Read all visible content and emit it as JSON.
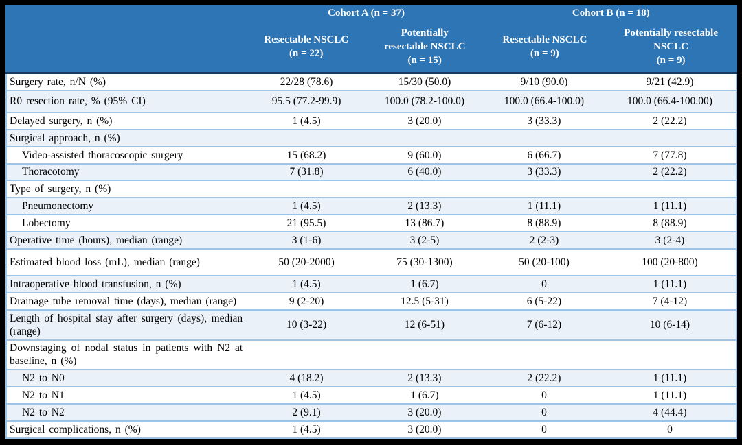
{
  "table": {
    "cohorts": [
      {
        "label": "Cohort A (n = 37)"
      },
      {
        "label": "Cohort B (n = 18)"
      }
    ],
    "columns": [
      {
        "label": "Resectable NSCLC\n(n = 22)"
      },
      {
        "label": "Potentially\nresectable NSCLC\n(n = 15)"
      },
      {
        "label": "Resectable NSCLC\n(n = 9)"
      },
      {
        "label": "Potentially resectable\nNSCLC\n(n = 9)"
      }
    ],
    "rows": [
      {
        "label": "Surgery rate, n/N (%)",
        "indent": false,
        "values": [
          "22/28 (78.6)",
          "15/30 (50.0)",
          "9/10 (90.0)",
          "9/21 (42.9)"
        ]
      },
      {
        "label": "R0 resection rate, % (95% CI)",
        "indent": false,
        "values": [
          "95.5 (77.2-99.9)",
          "100.0 (78.2-100.0)",
          "100.0 (66.4-100.0)",
          "100.0 (66.4-100.00)"
        ]
      },
      {
        "label": "Delayed surgery, n (%)",
        "indent": false,
        "values": [
          "1 (4.5)",
          "3 (20.0)",
          "3 (33.3)",
          "2 (22.2)"
        ]
      },
      {
        "label": "Surgical approach, n (%)",
        "indent": false,
        "values": [
          "",
          "",
          "",
          ""
        ]
      },
      {
        "label": "Video-assisted thoracoscopic surgery",
        "indent": true,
        "values": [
          "15 (68.2)",
          "9 (60.0)",
          "6 (66.7)",
          "7 (77.8)"
        ]
      },
      {
        "label": "Thoracotomy",
        "indent": true,
        "values": [
          "7 (31.8)",
          "6 (40.0)",
          "3 (33.3)",
          "2 (22.2)"
        ]
      },
      {
        "label": "Type of surgery, n (%)",
        "indent": false,
        "values": [
          "",
          "",
          "",
          ""
        ]
      },
      {
        "label": "Pneumonectomy",
        "indent": true,
        "values": [
          "1 (4.5)",
          "2 (13.3)",
          "1 (11.1)",
          "1 (11.1)"
        ]
      },
      {
        "label": "Lobectomy",
        "indent": true,
        "values": [
          "21 (95.5)",
          "13 (86.7)",
          "8 (88.9)",
          "8 (88.9)"
        ]
      },
      {
        "label": "Operative time (hours), median (range)",
        "indent": false,
        "values": [
          "3 (1-6)",
          "3 (2-5)",
          "2 (2-3)",
          "3 (2-4)"
        ]
      },
      {
        "label": "Estimated blood loss (mL), median (range)",
        "indent": false,
        "values": [
          "50 (20-2000)",
          "75 (30-1300)",
          "50 (20-100)",
          "100 (20-800)"
        ]
      },
      {
        "label": "Intraoperative blood transfusion, n (%)",
        "indent": false,
        "values": [
          "1 (4.5)",
          "1 (6.7)",
          "0",
          "1 (11.1)"
        ]
      },
      {
        "label": "Drainage tube removal time (days), median (range)",
        "indent": false,
        "values": [
          "9 (2-20)",
          "12.5 (5-31)",
          "6 (5-22)",
          "7 (4-12)"
        ]
      },
      {
        "label": "Length of hospital stay after surgery (days), median (range)",
        "indent": false,
        "values": [
          "10 (3-22)",
          "12 (6-51)",
          "7 (6-12)",
          "10 (6-14)"
        ]
      },
      {
        "label": "Downstaging of nodal status in patients with N2 at baseline, n (%)",
        "indent": false,
        "values": [
          "",
          "",
          "",
          ""
        ]
      },
      {
        "label": "N2 to N0",
        "indent": true,
        "values": [
          "4 (18.2)",
          "2 (13.3)",
          "2 (22.2)",
          "1 (11.1)"
        ]
      },
      {
        "label": "N2 to N1",
        "indent": true,
        "values": [
          "1 (4.5)",
          "1 (6.7)",
          "0",
          "1 (11.1)"
        ]
      },
      {
        "label": "N2 to N2",
        "indent": true,
        "values": [
          "2 (9.1)",
          "3 (20.0)",
          "0",
          "4 (44.4)"
        ]
      },
      {
        "label": "Surgical complications, n (%)",
        "indent": false,
        "values": [
          "1 (4.5)",
          "3 (20.0)",
          "0",
          "0"
        ]
      }
    ],
    "colors": {
      "header_bg": "#2E75B6",
      "header_text": "#FFFFFF",
      "header_bottom_border": "#17375E",
      "row_border": "#9DC3E6",
      "row_alt_bg": "#EAF1F9",
      "row_bg": "#FFFFFF",
      "outer_frame": "#000000",
      "body_text": "#000000"
    }
  }
}
